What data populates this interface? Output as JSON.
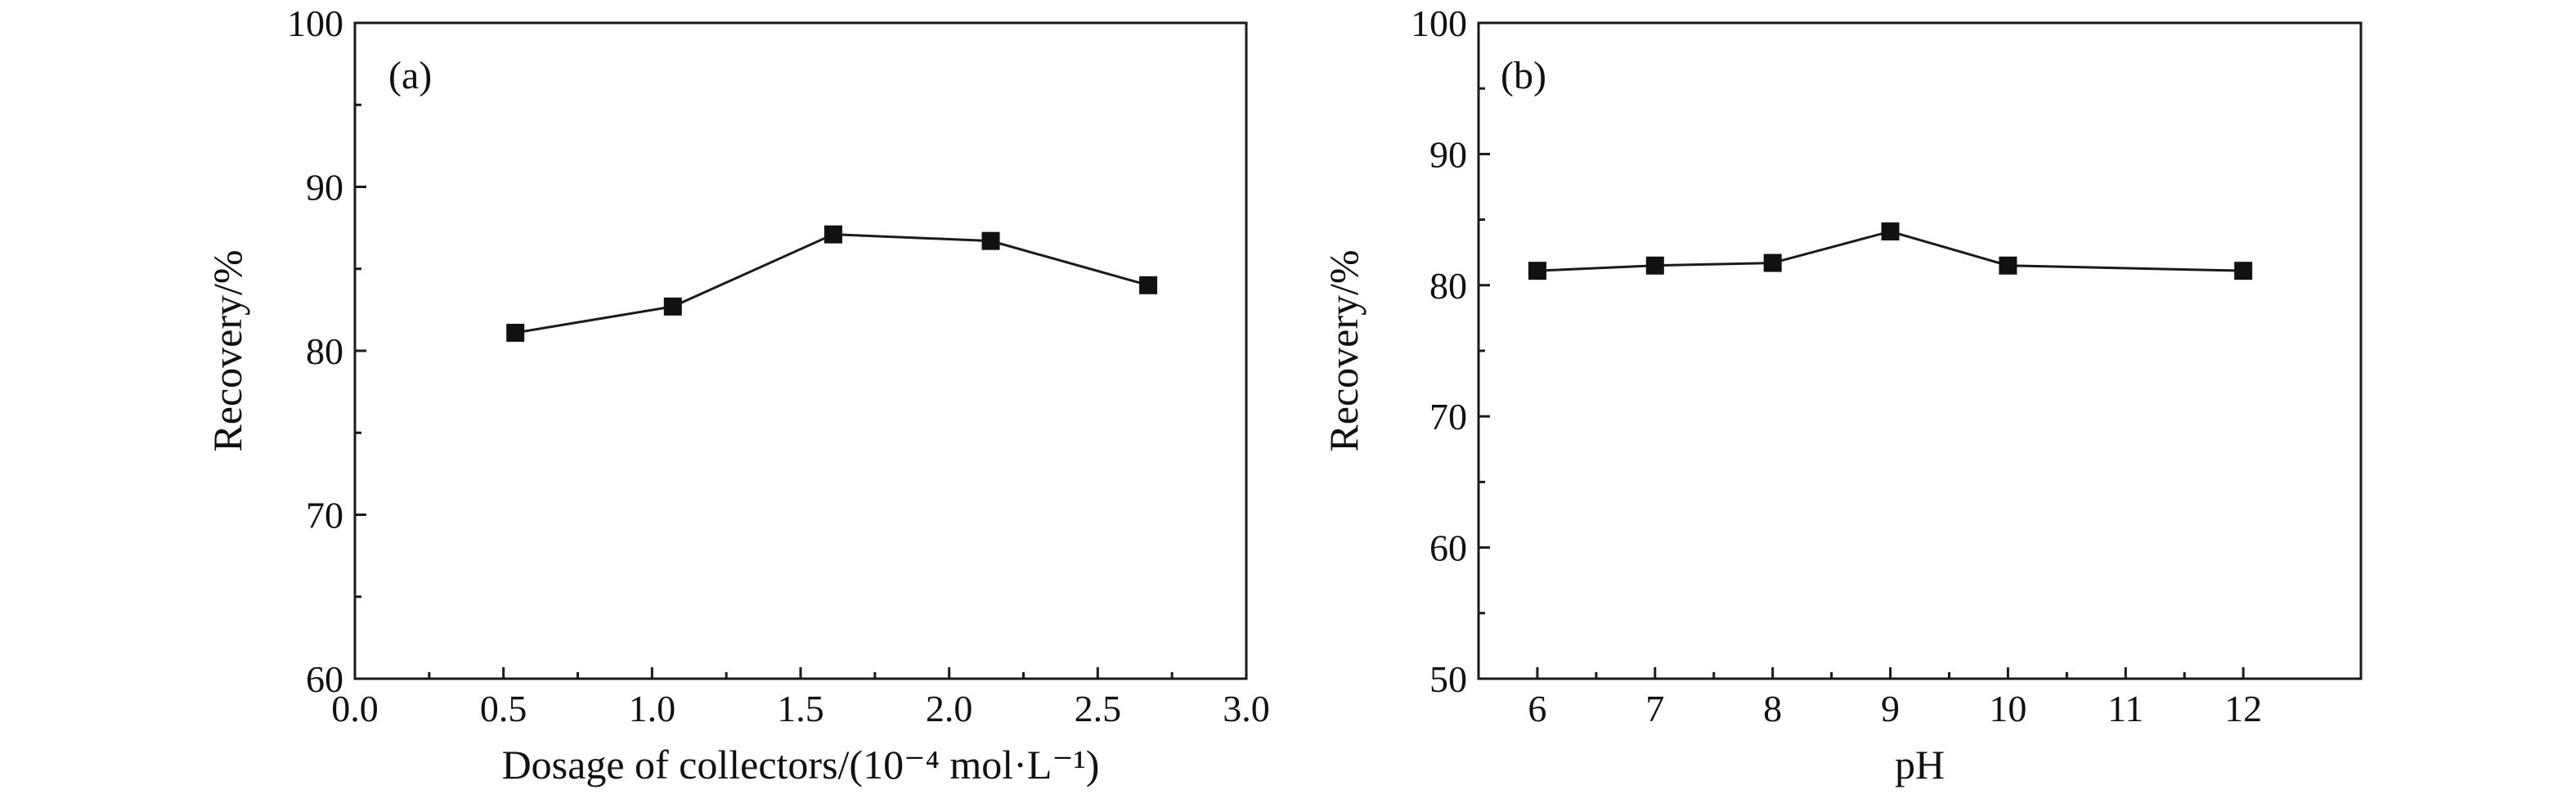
{
  "chart_data": [
    {
      "panel_label": "(a)",
      "type": "line",
      "xlabel": "Dosage of collectors/(10⁻⁴ mol·L⁻¹)",
      "ylabel": "Recovery/%",
      "xlim": [
        0.0,
        3.0
      ],
      "ylim": [
        60,
        100
      ],
      "xticks": [
        0.0,
        0.5,
        1.0,
        1.5,
        2.0,
        2.5,
        3.0
      ],
      "xtick_labels": [
        "0.0",
        "0.5",
        "1.0",
        "1.5",
        "2.0",
        "2.5",
        "3.0"
      ],
      "yticks": [
        60,
        70,
        80,
        90,
        100
      ],
      "ytick_labels": [
        "60",
        "70",
        "80",
        "90",
        "100"
      ],
      "grid": false,
      "marker": "square",
      "x": [
        0.54,
        1.07,
        1.61,
        2.14,
        2.67
      ],
      "y": [
        81.1,
        82.7,
        87.1,
        86.7,
        84.0
      ]
    },
    {
      "panel_label": "(b)",
      "type": "line",
      "xlabel": "pH",
      "ylabel": "Recovery/%",
      "xlim": [
        5.5,
        13.0
      ],
      "ylim": [
        50,
        100
      ],
      "xticks": [
        6,
        7,
        8,
        9,
        10,
        11,
        12
      ],
      "xtick_labels": [
        "6",
        "7",
        "8",
        "9",
        "10",
        "11",
        "12"
      ],
      "yticks": [
        50,
        60,
        70,
        80,
        90,
        100
      ],
      "ytick_labels": [
        "50",
        "60",
        "70",
        "80",
        "90",
        "100"
      ],
      "grid": false,
      "marker": "square",
      "x": [
        6,
        7,
        8,
        9,
        10,
        12
      ],
      "y": [
        81.1,
        81.5,
        81.7,
        84.1,
        81.5,
        81.1
      ]
    }
  ]
}
